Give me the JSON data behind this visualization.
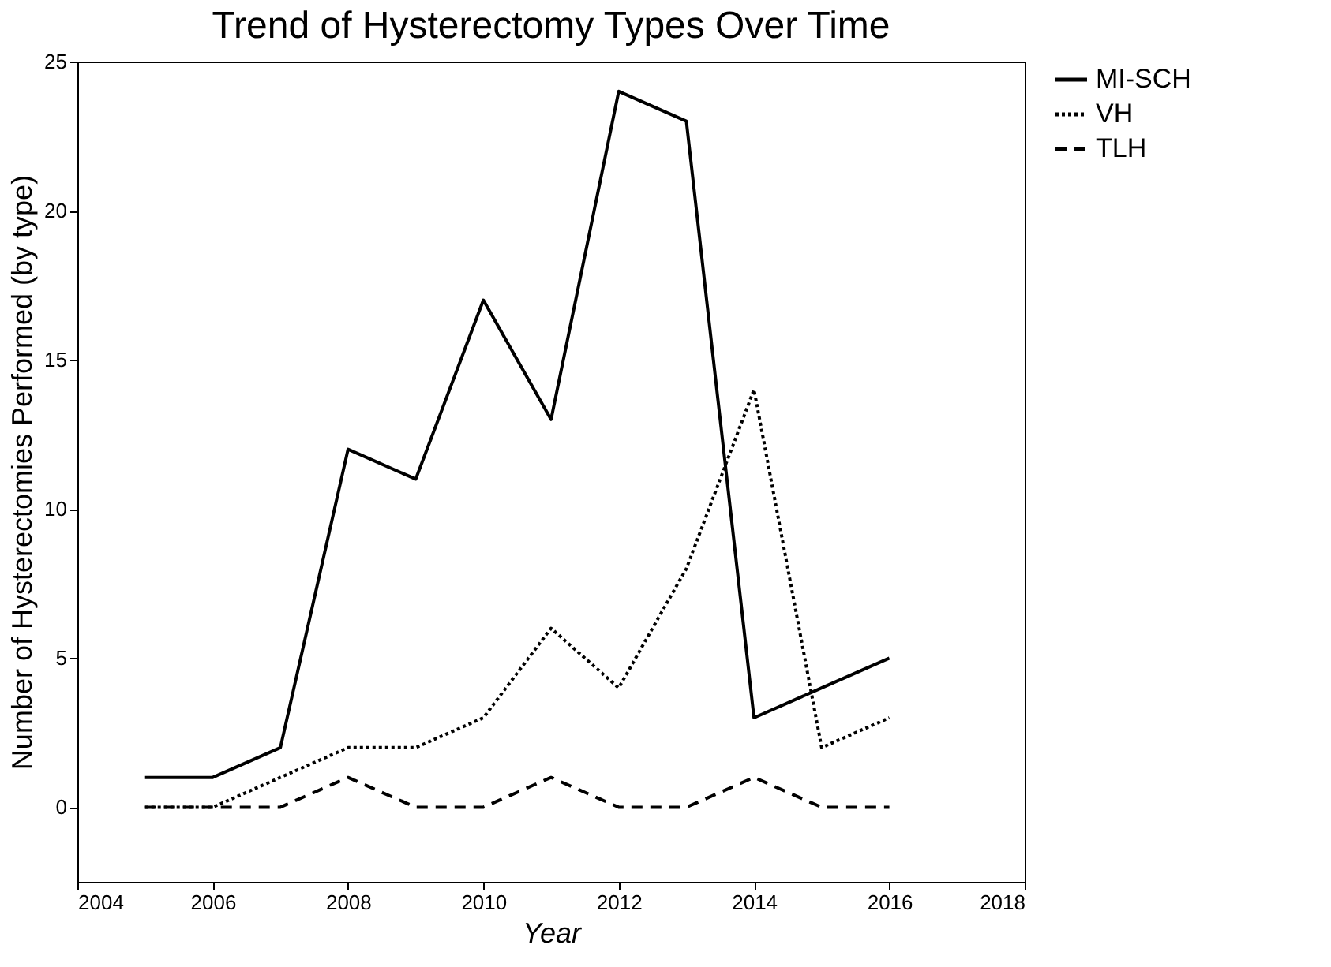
{
  "chart_data": {
    "type": "line",
    "title": "Trend of Hysterectomy Types Over Time",
    "xlabel": "Year",
    "ylabel": "Number of Hysterectomies Performed (by type)",
    "x": [
      2005,
      2006,
      2007,
      2008,
      2009,
      2010,
      2011,
      2012,
      2013,
      2014,
      2015,
      2016
    ],
    "series": [
      {
        "name": "MI-SCH",
        "color": "#000000",
        "line_style": "solid",
        "values": [
          1,
          1,
          2,
          12,
          11,
          17,
          13,
          24,
          23,
          3,
          4,
          5
        ]
      },
      {
        "name": "VH",
        "color": "#000000",
        "line_style": "dotted",
        "values": [
          0,
          0,
          1,
          2,
          2,
          3,
          6,
          4,
          8,
          14,
          2,
          3
        ]
      },
      {
        "name": "TLH",
        "color": "#000000",
        "line_style": "dashed",
        "values": [
          0,
          0,
          0,
          1,
          0,
          0,
          1,
          0,
          0,
          1,
          0,
          0
        ]
      }
    ],
    "xlim": [
      2004,
      2018
    ],
    "xticks": [
      2004,
      2006,
      2008,
      2010,
      2012,
      2014,
      2016,
      2018
    ],
    "ylim": [
      -2.5,
      25
    ],
    "yticks": [
      0,
      5,
      10,
      15,
      20,
      25
    ],
    "grid": false,
    "legend": "top right",
    "marker": "none"
  }
}
